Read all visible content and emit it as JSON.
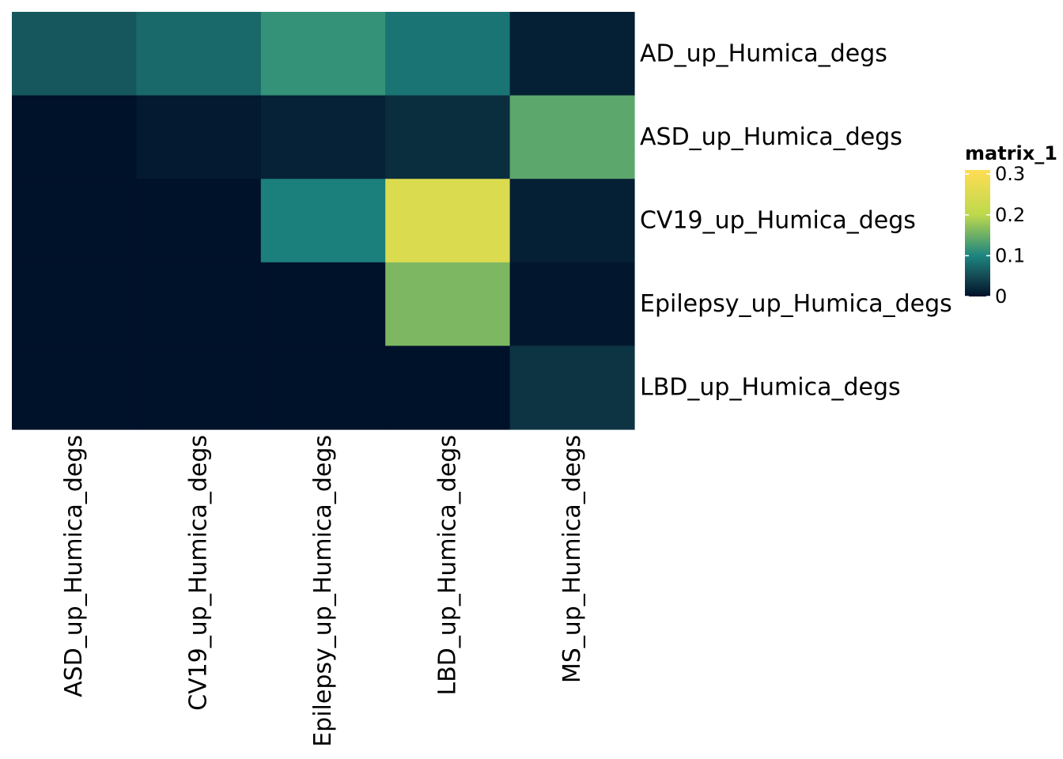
{
  "chart_data": {
    "type": "heatmap",
    "rows": [
      "AD_up_Humica_degs",
      "ASD_up_Humica_degs",
      "CV19_up_Humica_degs",
      "Epilepsy_up_Humica_degs",
      "LBD_up_Humica_degs"
    ],
    "columns": [
      "ASD_up_Humica_degs",
      "CV19_up_Humica_degs",
      "Epilepsy_up_Humica_degs",
      "LBD_up_Humica_degs",
      "MS_up_Humica_degs"
    ],
    "values": [
      [
        0.06,
        0.075,
        0.115,
        0.085,
        0.012
      ],
      [
        0.0,
        0.008,
        0.015,
        0.025,
        0.14
      ],
      [
        0.0,
        0.0,
        0.095,
        0.25,
        0.012
      ],
      [
        0.0,
        0.0,
        0.0,
        0.16,
        0.005
      ],
      [
        0.0,
        0.0,
        0.0,
        0.0,
        0.03
      ]
    ],
    "legend": {
      "title": "matrix_1",
      "ticks": [
        0,
        0.1,
        0.2,
        0.3
      ],
      "tick_labels": [
        "0",
        "0.1",
        "0.2",
        "0.3"
      ],
      "range": [
        0,
        0.31
      ]
    },
    "colorscale": [
      {
        "value": 0.0,
        "color": "#00112a"
      },
      {
        "value": 0.05,
        "color": "#154b54"
      },
      {
        "value": 0.1,
        "color": "#1c8580"
      },
      {
        "value": 0.2,
        "color": "#bdd94c"
      },
      {
        "value": 0.31,
        "color": "#ffdd54"
      }
    ]
  }
}
